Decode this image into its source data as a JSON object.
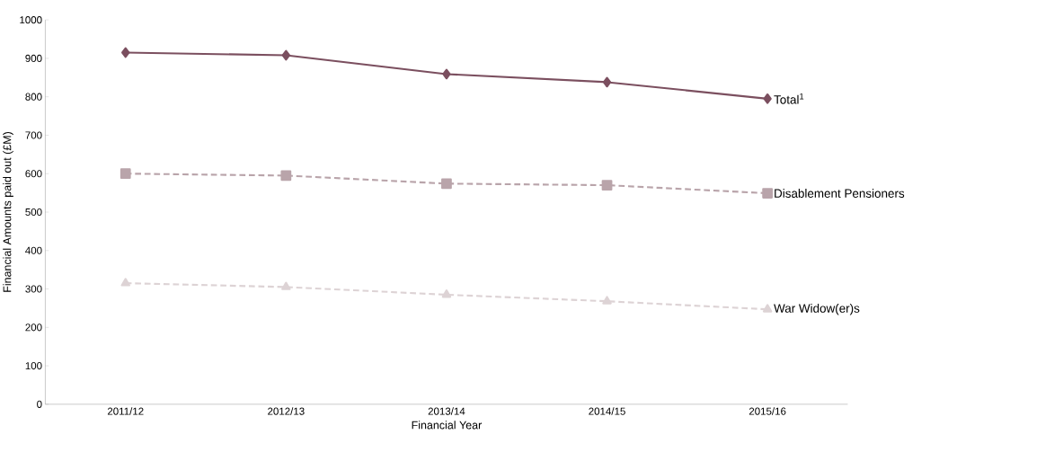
{
  "chart_data": {
    "type": "line",
    "xlabel": "Financial Year",
    "ylabel": "Financial Amounts paid out (£M)",
    "categories": [
      "2011/12",
      "2012/13",
      "2013/14",
      "2014/15",
      "2015/16"
    ],
    "series": [
      {
        "name": "Total$^{1}$",
        "color": "#7b4f5f",
        "marker": "diamond",
        "line_style": "solid",
        "values": [
          915,
          908,
          859,
          838,
          795
        ]
      },
      {
        "name": "Disablement Pensioners",
        "color": "#b9a4aa",
        "marker": "square",
        "line_style": "dashed",
        "values": [
          600,
          595,
          574,
          570,
          549
        ]
      },
      {
        "name": "War Widow(er)s",
        "color": "#ddd3d5",
        "marker": "triangle",
        "line_style": "dashed",
        "values": [
          315,
          305,
          285,
          268,
          247
        ]
      }
    ],
    "ylim": [
      0,
      1000
    ],
    "yticks": [
      0,
      100,
      200,
      300,
      400,
      500,
      600,
      700,
      800,
      900,
      1000
    ],
    "grid": false,
    "legend": false
  }
}
